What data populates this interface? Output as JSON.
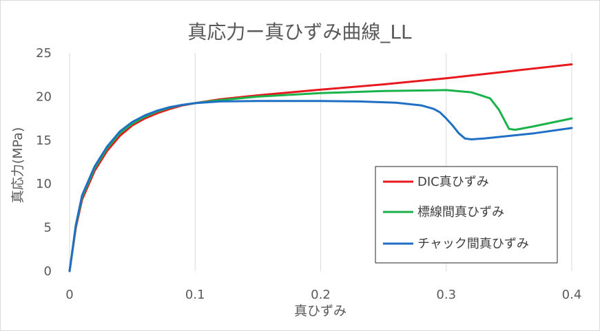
{
  "chart_data": {
    "type": "line",
    "title": "真応力ー真ひずみ曲線_LL",
    "xlabel": "真ひずみ",
    "ylabel": "真応力(MPa)",
    "xlim": [
      0,
      0.4
    ],
    "ylim": [
      0,
      25
    ],
    "x_ticks": [
      "0",
      "0.1",
      "0.2",
      "0.3",
      "0.4"
    ],
    "y_ticks": [
      "0",
      "5",
      "10",
      "15",
      "20",
      "25"
    ],
    "grid": "vertical",
    "legend_position": "bottom-right",
    "series": [
      {
        "name": "DIC真ひずみ",
        "color": "#e8191e",
        "points": [
          [
            0,
            0
          ],
          [
            0.005,
            5
          ],
          [
            0.01,
            8.2
          ],
          [
            0.02,
            11.5
          ],
          [
            0.03,
            13.8
          ],
          [
            0.04,
            15.5
          ],
          [
            0.05,
            16.7
          ],
          [
            0.06,
            17.5
          ],
          [
            0.07,
            18.1
          ],
          [
            0.08,
            18.6
          ],
          [
            0.09,
            19.0
          ],
          [
            0.1,
            19.25
          ],
          [
            0.12,
            19.7
          ],
          [
            0.15,
            20.15
          ],
          [
            0.2,
            20.8
          ],
          [
            0.25,
            21.4
          ],
          [
            0.3,
            22.1
          ],
          [
            0.35,
            22.9
          ],
          [
            0.4,
            23.7
          ]
        ]
      },
      {
        "name": "標線間真ひずみ",
        "color": "#19b24b",
        "points": [
          [
            0,
            0
          ],
          [
            0.005,
            5.2
          ],
          [
            0.01,
            8.5
          ],
          [
            0.02,
            11.8
          ],
          [
            0.03,
            14.1
          ],
          [
            0.04,
            15.8
          ],
          [
            0.05,
            16.9
          ],
          [
            0.06,
            17.7
          ],
          [
            0.07,
            18.3
          ],
          [
            0.08,
            18.75
          ],
          [
            0.09,
            19.05
          ],
          [
            0.1,
            19.25
          ],
          [
            0.12,
            19.6
          ],
          [
            0.15,
            20.0
          ],
          [
            0.2,
            20.4
          ],
          [
            0.25,
            20.65
          ],
          [
            0.3,
            20.75
          ],
          [
            0.32,
            20.5
          ],
          [
            0.335,
            19.8
          ],
          [
            0.342,
            18.5
          ],
          [
            0.35,
            16.3
          ],
          [
            0.355,
            16.2
          ],
          [
            0.37,
            16.6
          ],
          [
            0.4,
            17.5
          ]
        ]
      },
      {
        "name": "チャック間真ひずみ",
        "color": "#1f6fc5",
        "points": [
          [
            0,
            0
          ],
          [
            0.005,
            5.3
          ],
          [
            0.01,
            8.7
          ],
          [
            0.02,
            12.0
          ],
          [
            0.03,
            14.3
          ],
          [
            0.04,
            16.0
          ],
          [
            0.05,
            17.1
          ],
          [
            0.06,
            17.85
          ],
          [
            0.07,
            18.4
          ],
          [
            0.08,
            18.8
          ],
          [
            0.09,
            19.05
          ],
          [
            0.1,
            19.25
          ],
          [
            0.12,
            19.45
          ],
          [
            0.15,
            19.5
          ],
          [
            0.2,
            19.5
          ],
          [
            0.23,
            19.45
          ],
          [
            0.26,
            19.3
          ],
          [
            0.28,
            19.0
          ],
          [
            0.29,
            18.6
          ],
          [
            0.295,
            18.2
          ],
          [
            0.3,
            17.5
          ],
          [
            0.305,
            16.7
          ],
          [
            0.31,
            15.8
          ],
          [
            0.315,
            15.2
          ],
          [
            0.32,
            15.1
          ],
          [
            0.33,
            15.2
          ],
          [
            0.35,
            15.5
          ],
          [
            0.37,
            15.8
          ],
          [
            0.4,
            16.4
          ]
        ]
      }
    ]
  }
}
